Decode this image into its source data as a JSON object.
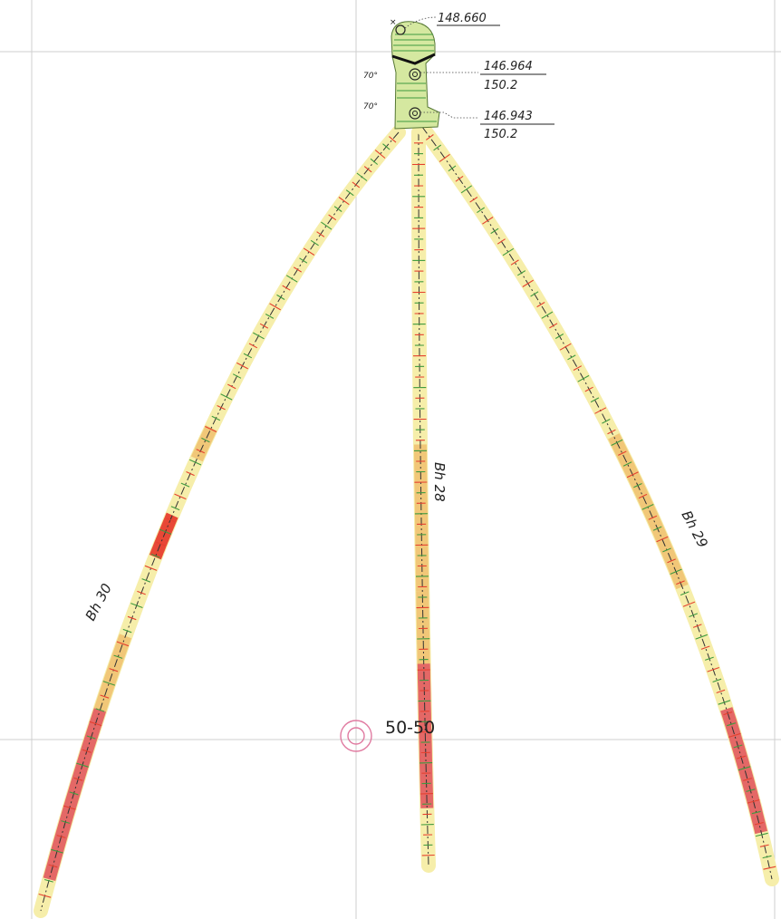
{
  "drawing": {
    "grid_label": "50-50",
    "collar": {
      "survey_point_elevation": "148.660",
      "holes": [
        {
          "elevation": "146.964",
          "depth": "150.2",
          "dip_label": "70°"
        },
        {
          "elevation": "146.943",
          "depth": "150.2",
          "dip_label": "70°"
        }
      ]
    },
    "boreholes": [
      {
        "id": "bh30",
        "label": "Bh 30"
      },
      {
        "id": "bh28",
        "label": "Bh 28"
      },
      {
        "id": "bh29",
        "label": "Bh 29"
      }
    ],
    "colors": {
      "core_trace": "#f6eeaa",
      "altered_zone": "#f0c070",
      "mineralized_zone": "#e0505a",
      "intense_zone": "#e52a22",
      "tick_green": "#3f9a3f",
      "tick_red": "#e5412f",
      "collar_pad": "#d5e8a0",
      "grid_line": "#cfcfcf",
      "grid_marker": "#e07aa0"
    },
    "icons": [
      "grid-marker-icon",
      "survey-point-icon",
      "collar-hole-icon"
    ]
  }
}
